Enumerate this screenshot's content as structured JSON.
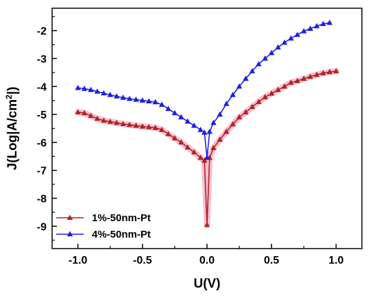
{
  "chart_data": {
    "type": "line",
    "title": "",
    "xlabel": "U(V)",
    "ylabel_parts": {
      "prefix": "J(Log|A/cm",
      "sup": "2",
      "suffix": "|)"
    },
    "xlim": [
      -1.2,
      1.2
    ],
    "ylim": [
      -9.8,
      -1.2
    ],
    "xticks": [
      -1.0,
      -0.5,
      0.0,
      0.5,
      1.0
    ],
    "xtick_labels": [
      "-1.0",
      "-0.5",
      "0.0",
      "0.5",
      "1.0"
    ],
    "yticks": [
      -9,
      -8,
      -7,
      -6,
      -5,
      -4,
      -3,
      -2
    ],
    "ytick_labels": [
      "-9",
      "-8",
      "-7",
      "-6",
      "-5",
      "-4",
      "-3",
      "-2"
    ],
    "grid": false,
    "legend_position": "bottom-left",
    "series": [
      {
        "name": "1%-50nm-Pt",
        "color": "#b22222",
        "glow": "#f4b6c9",
        "marker": "triangle",
        "x": [
          -1.0,
          -0.95,
          -0.9,
          -0.85,
          -0.8,
          -0.75,
          -0.7,
          -0.65,
          -0.6,
          -0.55,
          -0.5,
          -0.45,
          -0.4,
          -0.35,
          -0.3,
          -0.25,
          -0.2,
          -0.15,
          -0.1,
          -0.05,
          -0.02,
          0.0,
          0.02,
          0.05,
          0.1,
          0.15,
          0.2,
          0.25,
          0.3,
          0.35,
          0.4,
          0.45,
          0.5,
          0.55,
          0.6,
          0.65,
          0.7,
          0.75,
          0.8,
          0.85,
          0.9,
          0.95,
          1.0
        ],
        "y": [
          -4.92,
          -4.95,
          -5.05,
          -5.15,
          -5.22,
          -5.26,
          -5.3,
          -5.34,
          -5.37,
          -5.4,
          -5.43,
          -5.45,
          -5.48,
          -5.55,
          -5.7,
          -5.85,
          -6.0,
          -6.18,
          -6.35,
          -6.55,
          -6.65,
          -8.95,
          -6.55,
          -6.2,
          -5.9,
          -5.62,
          -5.35,
          -5.1,
          -4.92,
          -4.73,
          -4.55,
          -4.38,
          -4.25,
          -4.12,
          -4.0,
          -3.86,
          -3.8,
          -3.72,
          -3.65,
          -3.58,
          -3.52,
          -3.48,
          -3.45
        ]
      },
      {
        "name": "4%-50nm-Pt",
        "color": "#1f1fe0",
        "glow": "",
        "marker": "triangle",
        "x": [
          -1.0,
          -0.95,
          -0.9,
          -0.85,
          -0.8,
          -0.75,
          -0.7,
          -0.65,
          -0.6,
          -0.55,
          -0.5,
          -0.45,
          -0.4,
          -0.35,
          -0.3,
          -0.25,
          -0.2,
          -0.15,
          -0.1,
          -0.05,
          -0.02,
          0.0,
          0.02,
          0.05,
          0.1,
          0.15,
          0.2,
          0.25,
          0.3,
          0.35,
          0.4,
          0.45,
          0.5,
          0.55,
          0.6,
          0.65,
          0.7,
          0.75,
          0.8,
          0.85,
          0.9,
          0.95
        ],
        "y": [
          -4.05,
          -4.08,
          -4.12,
          -4.18,
          -4.24,
          -4.3,
          -4.35,
          -4.4,
          -4.44,
          -4.47,
          -4.5,
          -4.53,
          -4.56,
          -4.65,
          -4.8,
          -4.95,
          -5.1,
          -5.25,
          -5.4,
          -5.55,
          -5.65,
          -6.55,
          -5.62,
          -5.3,
          -5.0,
          -4.62,
          -4.3,
          -4.0,
          -3.72,
          -3.45,
          -3.2,
          -3.0,
          -2.8,
          -2.6,
          -2.43,
          -2.28,
          -2.15,
          -2.02,
          -1.93,
          -1.84,
          -1.76,
          -1.72
        ]
      }
    ]
  }
}
